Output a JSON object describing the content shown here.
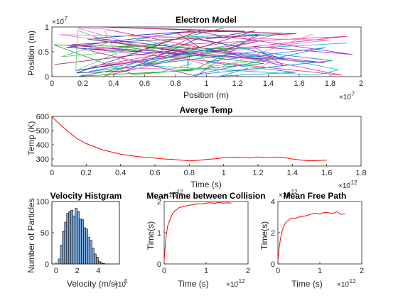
{
  "chart_data": [
    {
      "type": "line",
      "title": "Electron Model",
      "xlabel": "Position (m)",
      "ylabel": "Position (m)",
      "x_exponent_label": "×10",
      "x_exponent_power": "-7",
      "y_exponent_label": "×10",
      "y_exponent_power": "-7",
      "xlim": [
        0,
        2
      ],
      "ylim": [
        0,
        1
      ],
      "x_ticks": [
        "0",
        "0.2",
        "0.4",
        "0.6",
        "0.8",
        "1",
        "1.2",
        "1.4",
        "1.6",
        "1.8",
        "2"
      ],
      "y_ticks": [
        "0",
        "0.5",
        "1"
      ],
      "grid": false,
      "series_colors": [
        "#7e2f8e",
        "#e63c96",
        "#1f3fbf",
        "#1bc4c4",
        "#2ca02c",
        "#f07ac8",
        "#b0206e",
        "#6ad46a",
        "#1d8fe0",
        "#a03cc8"
      ]
    },
    {
      "type": "line",
      "title": "Averge Temp",
      "xlabel": "Time (s)",
      "ylabel": "Temp (K)",
      "x_exponent_label": "×10",
      "x_exponent_power": "-12",
      "xlim": [
        0,
        1.8
      ],
      "ylim": [
        250,
        600
      ],
      "x_ticks": [
        "0",
        "0.2",
        "0.4",
        "0.6",
        "0.8",
        "1",
        "1.2",
        "1.4",
        "1.6",
        "1.8"
      ],
      "y_ticks": [
        "300",
        "400",
        "500",
        "600"
      ],
      "color": "#ff0000",
      "series": [
        {
          "x": [
            0,
            0.05,
            0.1,
            0.15,
            0.2,
            0.25,
            0.3,
            0.35,
            0.4,
            0.45,
            0.5,
            0.55,
            0.6,
            0.65,
            0.7,
            0.75,
            0.8,
            0.85,
            0.9,
            0.95,
            1.0,
            1.05,
            1.1,
            1.15,
            1.2,
            1.25,
            1.3,
            1.35,
            1.4,
            1.45,
            1.5,
            1.55,
            1.6
          ],
          "y": [
            598,
            540,
            488,
            440,
            408,
            385,
            362,
            348,
            333,
            325,
            316,
            311,
            306,
            300,
            297,
            292,
            286,
            290,
            296,
            301,
            308,
            312,
            311,
            306,
            314,
            308,
            313,
            310,
            300,
            292,
            287,
            289,
            291
          ]
        }
      ]
    },
    {
      "type": "bar",
      "title": "Velocity Histgram",
      "xlabel": "Velocity (m/s)",
      "ylabel": "Number of Particles",
      "x_exponent_label": "×10",
      "x_exponent_power": "5",
      "xlim": [
        -0.4,
        6
      ],
      "ylim": [
        0,
        100
      ],
      "x_ticks": [
        "0",
        "2",
        "4"
      ],
      "y_ticks": [
        "0",
        "50",
        "100"
      ],
      "bar_color": "#7ba7d3",
      "bin_width": 0.2,
      "bin_starts": [
        0.2,
        0.4,
        0.6,
        0.8,
        1.0,
        1.2,
        1.4,
        1.6,
        1.8,
        2.0,
        2.2,
        2.4,
        2.6,
        2.8,
        3.0,
        3.2,
        3.4,
        3.6,
        3.8,
        4.0,
        4.2,
        4.4
      ],
      "counts": [
        8,
        30,
        52,
        67,
        81,
        84,
        86,
        77,
        89,
        84,
        72,
        71,
        58,
        56,
        43,
        38,
        25,
        16,
        11,
        4,
        2,
        1
      ]
    },
    {
      "type": "line",
      "title": "Mean Time between Collision",
      "xlabel": "Time (s)",
      "ylabel": "Time(s)",
      "x_exponent_label": "×10",
      "x_exponent_power": "-12",
      "xlim": [
        0,
        2
      ],
      "ylim": [
        0,
        2
      ],
      "x_ticks": [
        "0",
        "1",
        "2"
      ],
      "y_ticks": [
        "0",
        "1",
        "2"
      ],
      "color": "#ff0000",
      "series": [
        {
          "x": [
            0,
            0.02,
            0.05,
            0.08,
            0.12,
            0.16,
            0.2,
            0.25,
            0.3,
            0.35,
            0.4,
            0.5,
            0.6,
            0.7,
            0.8,
            0.9,
            1.0,
            1.1,
            1.2,
            1.3,
            1.4,
            1.5,
            1.6
          ],
          "y": [
            0.1,
            0.5,
            0.9,
            1.2,
            1.35,
            1.5,
            1.6,
            1.7,
            1.74,
            1.8,
            1.82,
            1.85,
            1.88,
            1.9,
            1.93,
            1.92,
            1.95,
            1.96,
            1.94,
            1.97,
            1.95,
            1.96,
            1.95
          ]
        }
      ]
    },
    {
      "type": "line",
      "title": "Mean Free Path",
      "xlabel": "Time (s)",
      "ylabel": "Time(s)",
      "x_exponent_label": "×10",
      "x_exponent_power": "-12",
      "xlim": [
        0,
        2
      ],
      "ylim": [
        0,
        4
      ],
      "x_ticks": [
        "0",
        "1",
        "2"
      ],
      "y_ticks": [
        "0",
        "2",
        "4"
      ],
      "color": "#ff0000",
      "series": [
        {
          "x": [
            0,
            0.03,
            0.06,
            0.1,
            0.14,
            0.2,
            0.25,
            0.3,
            0.35,
            0.4,
            0.5,
            0.6,
            0.7,
            0.8,
            0.9,
            1.0,
            1.1,
            1.2,
            1.3,
            1.4,
            1.5,
            1.6
          ],
          "y": [
            0.2,
            1.0,
            1.6,
            2.1,
            2.45,
            2.7,
            2.8,
            2.9,
            2.95,
            2.92,
            3.0,
            3.05,
            3.1,
            3.2,
            3.25,
            3.18,
            3.3,
            3.28,
            3.22,
            3.35,
            3.18,
            3.2
          ]
        }
      ]
    }
  ]
}
